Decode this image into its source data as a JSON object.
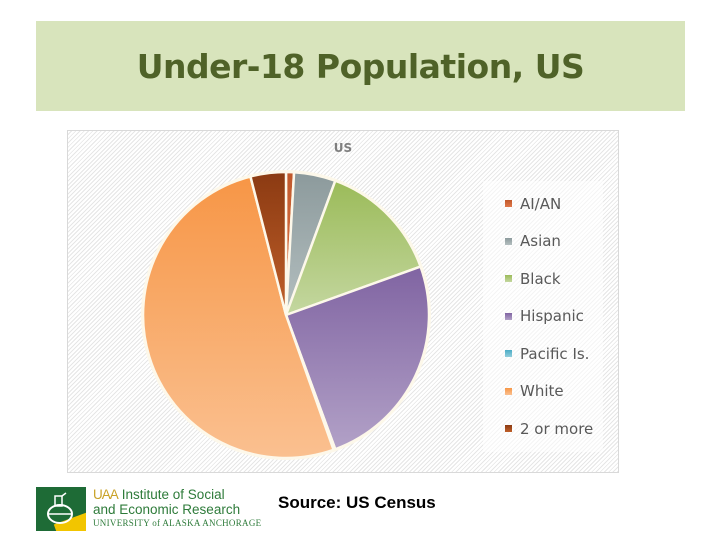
{
  "slide": {
    "title": "Under-18 Population, US",
    "source": "Source:  US Census",
    "logo": {
      "line1_mark": "UAA",
      "line1": "Institute of Social",
      "line2": "and Economic Research",
      "line3": "UNIVERSITY of ALASKA ANCHORAGE"
    }
  },
  "chart_data": {
    "type": "pie",
    "title": "US",
    "categories": [
      "AI/AN",
      "Asian",
      "Black",
      "Hispanic",
      "Pacific Is.",
      "White",
      "2 or more"
    ],
    "values": [
      0.9,
      4.7,
      13.9,
      24.9,
      0.2,
      51.4,
      4.0
    ],
    "unit": "percent (estimated from slice angles)",
    "colors": [
      "#c0582b",
      "#8c9a9c",
      "#9bbb59",
      "#8064a2",
      "#4bacc6",
      "#f79646",
      "#8b3a12"
    ],
    "colors_light": [
      "#e0784a",
      "#b4bfc0",
      "#c4d7a0",
      "#b2a1c7",
      "#92cddc",
      "#fac090",
      "#c0602a"
    ],
    "start_angle_deg": 0,
    "direction": "clockwise",
    "legend_position": "right",
    "grid": false
  }
}
